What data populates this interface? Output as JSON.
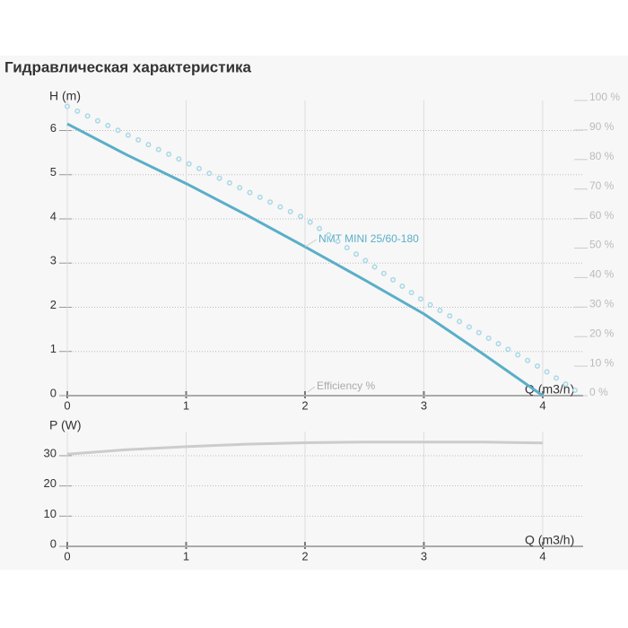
{
  "title": "Гидравлическая характеристика",
  "chart_data": [
    {
      "type": "line",
      "y_label": "H (m)",
      "x_label": "Q (m3/h)",
      "xlim": [
        0,
        4.34
      ],
      "xticks": [
        0,
        1,
        2,
        3,
        4
      ],
      "ylim": [
        0,
        6.68
      ],
      "yticks": [
        0,
        1,
        2,
        3,
        4,
        5,
        6
      ],
      "y2lim": [
        0,
        100
      ],
      "y2ticks": [
        {
          "value": 0,
          "label": "0 %"
        },
        {
          "value": 10,
          "label": "10 %"
        },
        {
          "value": 20,
          "label": "20 %"
        },
        {
          "value": 30,
          "label": "30 %"
        },
        {
          "value": 40,
          "label": "40 %"
        },
        {
          "value": 50,
          "label": "50 %"
        },
        {
          "value": 60,
          "label": "60 %"
        },
        {
          "value": 70,
          "label": "70 %"
        },
        {
          "value": 80,
          "label": "80 %"
        },
        {
          "value": 90,
          "label": "90 %"
        },
        {
          "value": 100,
          "label": "100 %"
        }
      ],
      "grid": true,
      "series": [
        {
          "name": "NMT MINI 25/60-180",
          "color": "#5aaec9",
          "style": "solid",
          "x": [
            0,
            0.5,
            1,
            1.5,
            2,
            2.5,
            3,
            3.5,
            4
          ],
          "values": [
            6.15,
            5.45,
            4.8,
            4.1,
            3.37,
            2.62,
            1.85,
            0.94,
            0
          ]
        },
        {
          "name": "Efficiency %",
          "color": "#a8d8e6",
          "style": "dotted",
          "axis": "y2",
          "x": [
            0,
            1,
            2,
            3,
            4,
            4.34
          ],
          "values": [
            98,
            79,
            60,
            32,
            9,
            0
          ]
        }
      ]
    },
    {
      "type": "line",
      "y_label": "P (W)",
      "x_label": "Q (m3/h)",
      "xlim": [
        0,
        4.34
      ],
      "xticks": [
        0,
        1,
        2,
        3,
        4
      ],
      "ylim": [
        0,
        38
      ],
      "yticks": [
        0,
        10,
        20,
        30
      ],
      "grid": true,
      "series": [
        {
          "color": "#cccccc",
          "style": "solid",
          "x": [
            0,
            0.5,
            1,
            1.5,
            2,
            2.5,
            3,
            3.5,
            4
          ],
          "values": [
            30.5,
            32,
            33,
            33.8,
            34.3,
            34.5,
            34.5,
            34.5,
            34.2
          ]
        }
      ]
    }
  ]
}
